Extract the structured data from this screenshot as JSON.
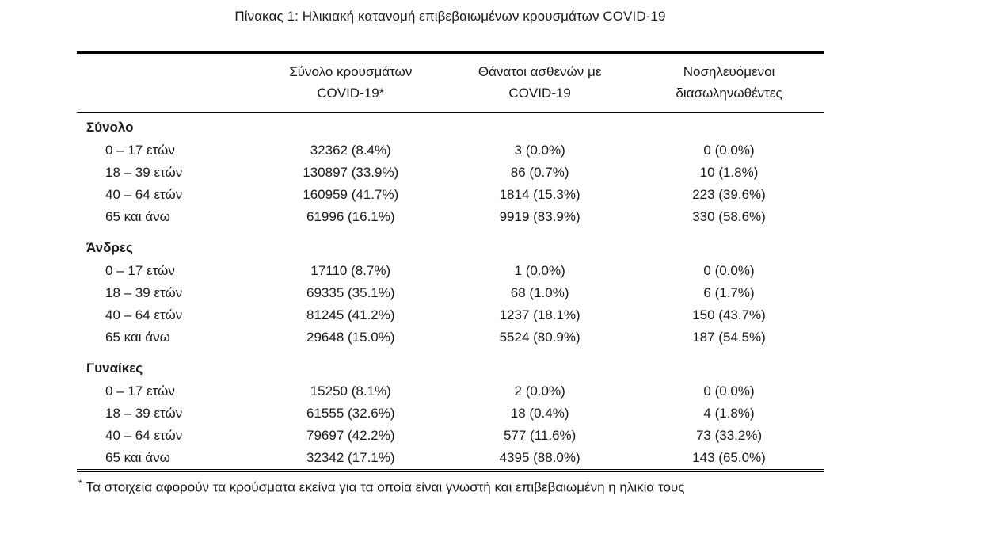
{
  "title": "Πίνακας 1: Ηλικιακή κατανομή επιβεβαιωμένων κρουσμάτων COVID-19",
  "table": {
    "columns": [
      {
        "line1": "Σύνολο κρουσμάτων",
        "line2": "COVID-19*"
      },
      {
        "line1": "Θάνατοι ασθενών με",
        "line2": "COVID-19"
      },
      {
        "line1": "Νοσηλευόμενοι",
        "line2": "διασωληνωθέντες"
      }
    ],
    "sections": [
      {
        "name": "Σύνολο",
        "rows": [
          [
            "0 – 17 ετών",
            "32362 (8.4%)",
            "3 (0.0%)",
            "0 (0.0%)"
          ],
          [
            "18 – 39 ετών",
            "130897 (33.9%)",
            "86 (0.7%)",
            "10 (1.8%)"
          ],
          [
            "40 – 64 ετών",
            "160959 (41.7%)",
            "1814 (15.3%)",
            "223 (39.6%)"
          ],
          [
            "65 και άνω",
            "61996 (16.1%)",
            "9919 (83.9%)",
            "330 (58.6%)"
          ]
        ]
      },
      {
        "name": "Άνδρες",
        "rows": [
          [
            "0 – 17 ετών",
            "17110 (8.7%)",
            "1 (0.0%)",
            "0 (0.0%)"
          ],
          [
            "18 – 39 ετών",
            "69335 (35.1%)",
            "68 (1.0%)",
            "6 (1.7%)"
          ],
          [
            "40 – 64 ετών",
            "81245 (41.2%)",
            "1237 (18.1%)",
            "150 (43.7%)"
          ],
          [
            "65 και άνω",
            "29648 (15.0%)",
            "5524 (80.9%)",
            "187 (54.5%)"
          ]
        ]
      },
      {
        "name": "Γυναίκες",
        "rows": [
          [
            "0 – 17 ετών",
            "15250 (8.1%)",
            "2 (0.0%)",
            "0 (0.0%)"
          ],
          [
            "18 – 39 ετών",
            "61555 (32.6%)",
            "18 (0.4%)",
            "4 (1.8%)"
          ],
          [
            "40 – 64 ετών",
            "79697 (42.2%)",
            "577 (11.6%)",
            "73 (33.2%)"
          ],
          [
            "65 και άνω",
            "32342 (17.1%)",
            "4395 (88.0%)",
            "143 (65.0%)"
          ]
        ]
      }
    ],
    "footnote": {
      "marker": "*",
      "text": "Τα στοιχεία αφορούν τα κρούσματα εκείνα για τα οποία είναι γνωστή και επιβεβαιωμένη η ηλικία τους"
    }
  },
  "colors": {
    "text": "#1a1a1a",
    "rule": "#000000",
    "background": "#ffffff"
  }
}
